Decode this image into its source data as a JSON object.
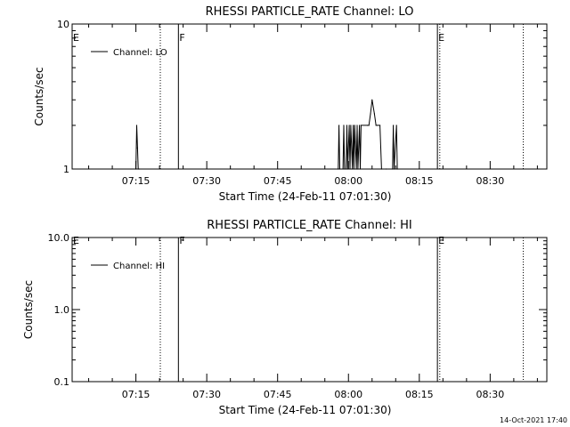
{
  "chart_data": [
    {
      "type": "line",
      "title": "RHESSI PARTICLE_RATE Channel: LO",
      "xlabel": "Start Time (24-Feb-11 07:01:30)",
      "ylabel": "Counts/sec",
      "y_scale": "log",
      "ylim": [
        1,
        10
      ],
      "y_ticks": [
        1,
        10
      ],
      "y_tick_labels": [
        "1",
        "10"
      ],
      "xlim": [
        "07:01:30",
        "08:42:00"
      ],
      "x_ticks": [
        "07:15",
        "07:30",
        "07:45",
        "08:00",
        "08:15",
        "08:30"
      ],
      "grid": false,
      "legend": {
        "position": "top-left",
        "entries": [
          "Channel: LO"
        ]
      },
      "series": [
        {
          "name": "Channel: LO",
          "x": [
            "07:15:00",
            "07:15:10",
            "07:15:20",
            "07:15:30",
            "07:15:40",
            "07:57:50",
            "07:58:00",
            "07:58:10",
            "07:58:50",
            "07:59:00",
            "07:59:10",
            "07:59:30",
            "07:59:40",
            "07:59:50",
            "08:00:10",
            "08:00:20",
            "08:00:30",
            "08:00:50",
            "08:01:00",
            "08:01:10",
            "08:01:20",
            "08:01:40",
            "08:01:50",
            "08:02:00",
            "08:02:20",
            "08:02:30",
            "08:02:40",
            "08:04:00",
            "08:04:20",
            "08:04:40",
            "08:05:00",
            "08:05:30",
            "08:05:50",
            "08:06:10",
            "08:06:40",
            "08:07:00",
            "08:08:00",
            "08:09:20",
            "08:09:30",
            "08:09:40",
            "08:10:10",
            "08:10:20"
          ],
          "values": [
            1,
            2,
            1.4,
            1,
            1,
            1,
            2,
            1,
            1,
            2,
            1,
            1,
            2,
            1,
            2,
            1,
            2,
            1,
            2,
            1,
            2,
            1,
            2,
            1,
            2,
            1,
            2,
            2,
            2,
            2.4,
            3,
            2.4,
            2,
            2,
            2,
            1,
            1,
            1,
            2,
            1,
            2,
            1
          ]
        }
      ],
      "markers": [
        {
          "label": "E",
          "time": "07:01:30",
          "style": "solid"
        },
        {
          "time": "07:20:10",
          "style": "dotted"
        },
        {
          "label": "F",
          "time": "07:24:00",
          "style": "solid"
        },
        {
          "label": "E",
          "time": "08:18:50",
          "style": "solid"
        },
        {
          "time": "08:19:20",
          "style": "dotted"
        },
        {
          "time": "08:37:00",
          "style": "dotted"
        }
      ]
    },
    {
      "type": "line",
      "title": "RHESSI PARTICLE_RATE Channel: HI",
      "xlabel": "Start Time (24-Feb-11 07:01:30)",
      "ylabel": "Counts/sec",
      "y_scale": "log",
      "ylim": [
        0.1,
        10
      ],
      "y_ticks": [
        0.1,
        1,
        10
      ],
      "y_tick_labels": [
        "0.1",
        "1.0",
        "10.0"
      ],
      "xlim": [
        "07:01:30",
        "08:42:00"
      ],
      "x_ticks": [
        "07:15",
        "07:30",
        "07:45",
        "08:00",
        "08:15",
        "08:30"
      ],
      "grid": false,
      "legend": {
        "position": "top-left",
        "entries": [
          "Channel: HI"
        ]
      },
      "series": [
        {
          "name": "Channel: HI",
          "x": [],
          "values": []
        }
      ],
      "markers": [
        {
          "label": "E",
          "time": "07:01:30",
          "style": "solid"
        },
        {
          "time": "07:20:10",
          "style": "dotted"
        },
        {
          "label": "F",
          "time": "07:24:00",
          "style": "solid"
        },
        {
          "label": "E",
          "time": "08:18:50",
          "style": "solid"
        },
        {
          "time": "08:19:20",
          "style": "dotted"
        },
        {
          "time": "08:37:00",
          "style": "dotted"
        }
      ]
    }
  ],
  "footer": {
    "timestamp": "14-Oct-2021 17:40"
  }
}
